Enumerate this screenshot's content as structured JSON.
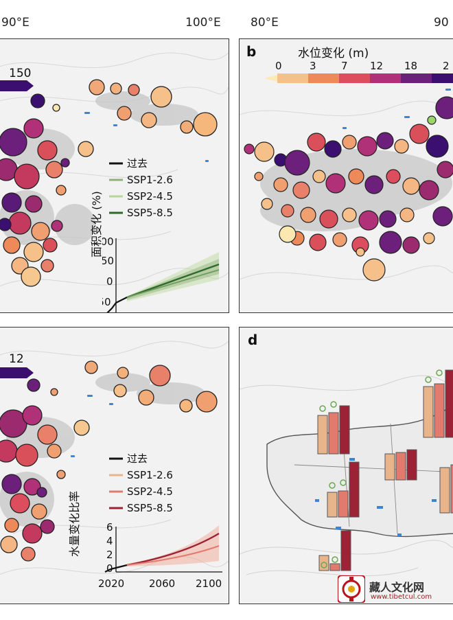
{
  "coords_top": [
    "90°E",
    "100°E",
    "80°E",
    "90"
  ],
  "panel_a": {
    "scale_value": "150",
    "legend": [
      "过去",
      "SSP1-2.6",
      "SSP2-4.5",
      "SSP5-8.5"
    ],
    "ylabel": "面积变化 (%)",
    "yticks": [
      "100",
      "50",
      "0",
      "-50"
    ],
    "xticks": [
      "2020",
      "2060",
      "2100"
    ]
  },
  "panel_b": {
    "label": "b",
    "title": "水位变化 (m)",
    "ticks": [
      "0",
      "3",
      "7",
      "12",
      "18",
      "2"
    ]
  },
  "panel_c": {
    "scale_value": "12",
    "legend": [
      "过去",
      "SSP1-2.6",
      "SSP2-4.5",
      "SSP5-8.5"
    ],
    "ylabel": "水量变化比率",
    "yticks": [
      "6",
      "4",
      "2",
      "0"
    ],
    "xticks": [
      "2020",
      "2060",
      "2100"
    ]
  },
  "panel_d": {
    "label": "d"
  },
  "colors": {
    "past": "#111111",
    "ssp_a": [
      "#8fb07a",
      "#b9d69a",
      "#2f6a2a"
    ],
    "ssp_c": [
      "#e8b48a",
      "#e37a6e",
      "#9b2335"
    ],
    "scale": [
      "#fbe6b6",
      "#f6b97a",
      "#ee8a5a",
      "#dc4d5e",
      "#b03177",
      "#6d1f7c",
      "#3b0f6f"
    ]
  },
  "watermark": {
    "title": "藏人文化网",
    "url": "www.tibetcul.com"
  }
}
